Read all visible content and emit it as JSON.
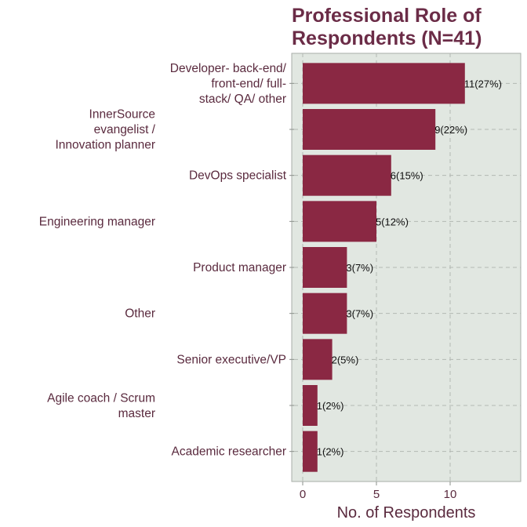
{
  "chart_data": {
    "type": "bar",
    "orientation": "horizontal",
    "title": [
      "Professional Role of",
      "Respondents (N=41)"
    ],
    "xlabel": "No. of Respondents",
    "ylabel": "",
    "xlim": [
      0,
      14.5
    ],
    "xticks": [
      0,
      5,
      10
    ],
    "grid": true,
    "categories": [
      [
        "Developer- back-end/",
        "front-end/ full-",
        "stack/ QA/ other"
      ],
      [
        "InnerSource",
        "evangelist /",
        "Innovation planner"
      ],
      [
        "DevOps specialist"
      ],
      [
        "Engineering manager"
      ],
      [
        "Product manager"
      ],
      [
        "Other"
      ],
      [
        "Senior executive/VP"
      ],
      [
        "Agile coach / Scrum",
        "master"
      ],
      [
        "Academic researcher"
      ]
    ],
    "values": [
      11,
      9,
      6,
      5,
      3,
      3,
      2,
      1,
      1
    ],
    "data_labels": [
      "11(27%)",
      "9(22%)",
      "6(15%)",
      "5(12%)",
      "3(7%)",
      "3(7%)",
      "2(5%)",
      "1(2%)",
      "1(2%)"
    ],
    "colors": {
      "bar": "#8a2843",
      "panel": "#e1e7e1",
      "grid": "#b3b8b3",
      "axis_text": "#5a2a3e",
      "title": "#6b2c47"
    }
  }
}
